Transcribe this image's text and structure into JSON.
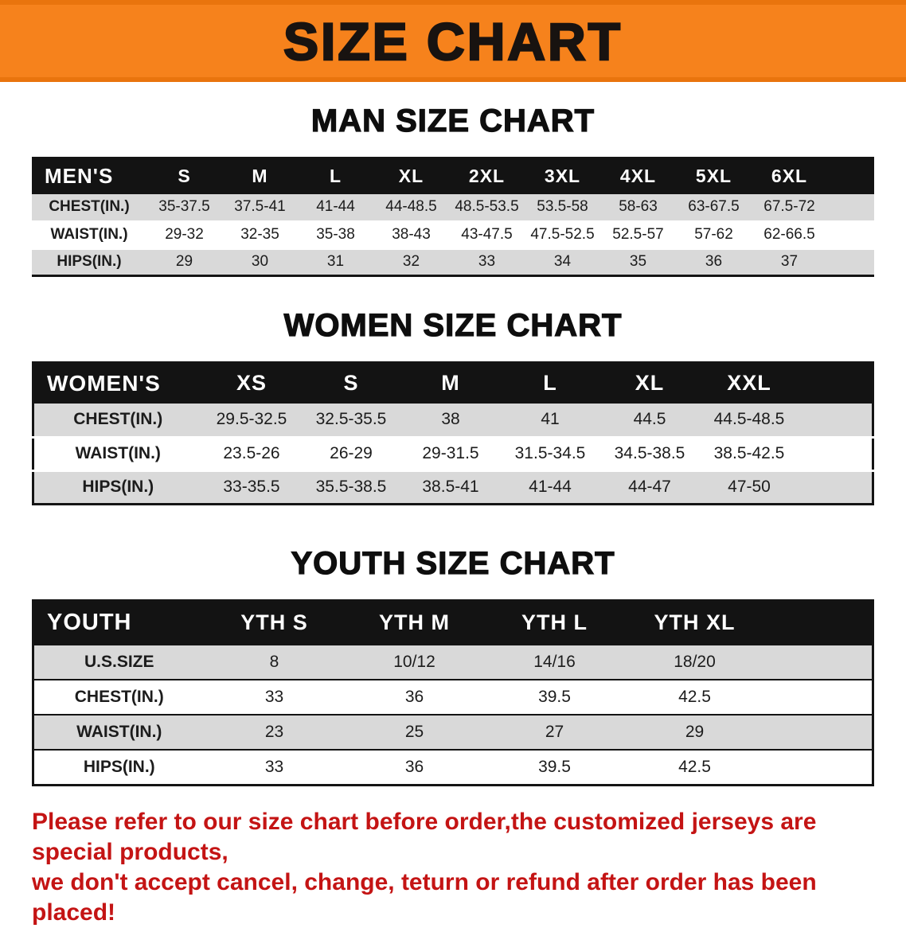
{
  "banner": {
    "title": "SIZE CHART"
  },
  "colors": {
    "banner_bg": "#f6821c",
    "table_header_bg": "#131313",
    "table_header_text": "#ffffff",
    "row_stripe": "#d9d9d9",
    "disclaimer_text": "#c41414"
  },
  "sections": [
    {
      "id": "men",
      "heading": "MAN SIZE CHART",
      "table": {
        "corner": "MEN'S",
        "columns": [
          "S",
          "M",
          "L",
          "XL",
          "2XL",
          "3XL",
          "4XL",
          "5XL",
          "6XL"
        ],
        "rows": [
          {
            "label": "CHEST(IN.)",
            "values": [
              "35-37.5",
              "37.5-41",
              "41-44",
              "44-48.5",
              "48.5-53.5",
              "53.5-58",
              "58-63",
              "63-67.5",
              "67.5-72"
            ]
          },
          {
            "label": "WAIST(IN.)",
            "values": [
              "29-32",
              "32-35",
              "35-38",
              "38-43",
              "43-47.5",
              "47.5-52.5",
              "52.5-57",
              "57-62",
              "62-66.5"
            ]
          },
          {
            "label": "HIPS(IN.)",
            "values": [
              "29",
              "30",
              "31",
              "32",
              "33",
              "34",
              "35",
              "36",
              "37"
            ]
          }
        ]
      }
    },
    {
      "id": "women",
      "heading": "WOMEN SIZE CHART",
      "table": {
        "corner": "WOMEN'S",
        "columns": [
          "XS",
          "S",
          "M",
          "L",
          "XL",
          "XXL"
        ],
        "rows": [
          {
            "label": "CHEST(IN.)",
            "values": [
              "29.5-32.5",
              "32.5-35.5",
              "38",
              "41",
              "44.5",
              "44.5-48.5"
            ]
          },
          {
            "label": "WAIST(IN.)",
            "values": [
              "23.5-26",
              "26-29",
              "29-31.5",
              "31.5-34.5",
              "34.5-38.5",
              "38.5-42.5"
            ]
          },
          {
            "label": "HIPS(IN.)",
            "values": [
              "33-35.5",
              "35.5-38.5",
              "38.5-41",
              "41-44",
              "44-47",
              "47-50"
            ]
          }
        ]
      }
    },
    {
      "id": "youth",
      "heading": "YOUTH SIZE CHART",
      "table": {
        "corner": "YOUTH",
        "columns": [
          "YTH S",
          "YTH M",
          "YTH L",
          "YTH XL"
        ],
        "rows": [
          {
            "label": "U.S.SIZE",
            "values": [
              "8",
              "10/12",
              "14/16",
              "18/20"
            ]
          },
          {
            "label": "CHEST(IN.)",
            "values": [
              "33",
              "36",
              "39.5",
              "42.5"
            ]
          },
          {
            "label": "WAIST(IN.)",
            "values": [
              "23",
              "25",
              "27",
              "29"
            ]
          },
          {
            "label": "HIPS(IN.)",
            "values": [
              "33",
              "36",
              "39.5",
              "42.5"
            ]
          }
        ]
      }
    }
  ],
  "footer": {
    "line1": "Please refer to our size chart before order,the customized jerseys are special products,",
    "line2": "we don't accept cancel, change, teturn or refund after order has been placed!"
  }
}
